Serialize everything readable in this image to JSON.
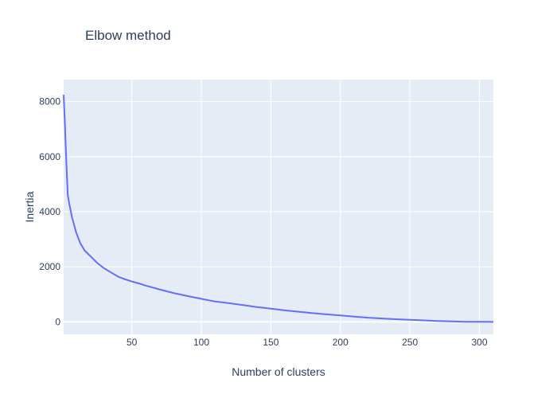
{
  "chart_data": {
    "type": "line",
    "title": "Elbow method",
    "xlabel": "Number of clusters",
    "ylabel": "Inertia",
    "xlim": [
      1,
      310
    ],
    "ylim": [
      -450,
      8800
    ],
    "x_ticks": [
      50,
      100,
      150,
      200,
      250,
      300
    ],
    "y_ticks": [
      0,
      2000,
      4000,
      6000,
      8000
    ],
    "grid": true,
    "legend": "none",
    "colors": {
      "plot_background": "#e5ecf6",
      "grid": "#ffffff",
      "line": "#636efa",
      "text": "#2a3f5f"
    },
    "series": [
      {
        "color": "#636efa",
        "points": [
          [
            1,
            8250
          ],
          [
            2,
            7100
          ],
          [
            3,
            5700
          ],
          [
            4,
            4600
          ],
          [
            5,
            4300
          ],
          [
            7,
            3800
          ],
          [
            10,
            3250
          ],
          [
            13,
            2850
          ],
          [
            16,
            2600
          ],
          [
            20,
            2400
          ],
          [
            25,
            2150
          ],
          [
            30,
            1950
          ],
          [
            35,
            1800
          ],
          [
            40,
            1650
          ],
          [
            45,
            1550
          ],
          [
            50,
            1470
          ],
          [
            55,
            1400
          ],
          [
            60,
            1320
          ],
          [
            70,
            1180
          ],
          [
            80,
            1050
          ],
          [
            90,
            940
          ],
          [
            100,
            840
          ],
          [
            110,
            740
          ],
          [
            120,
            680
          ],
          [
            130,
            610
          ],
          [
            140,
            540
          ],
          [
            150,
            480
          ],
          [
            160,
            420
          ],
          [
            170,
            370
          ],
          [
            180,
            320
          ],
          [
            190,
            275
          ],
          [
            200,
            235
          ],
          [
            210,
            195
          ],
          [
            220,
            155
          ],
          [
            230,
            125
          ],
          [
            240,
            100
          ],
          [
            250,
            75
          ],
          [
            260,
            55
          ],
          [
            270,
            35
          ],
          [
            280,
            20
          ],
          [
            290,
            8
          ],
          [
            300,
            3
          ],
          [
            310,
            0
          ]
        ]
      }
    ]
  }
}
